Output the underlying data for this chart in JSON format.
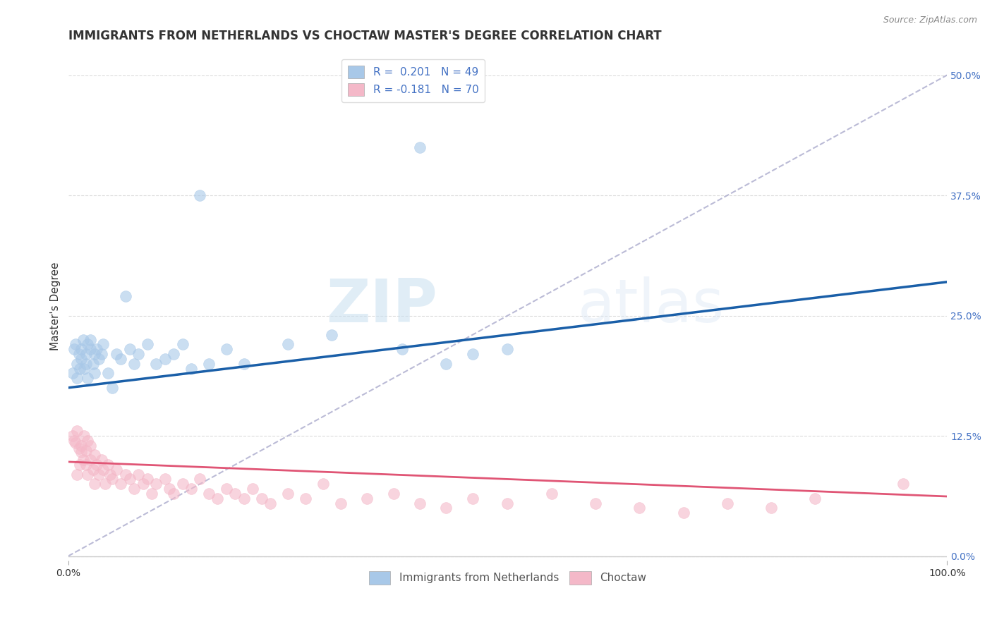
{
  "title": "IMMIGRANTS FROM NETHERLANDS VS CHOCTAW MASTER'S DEGREE CORRELATION CHART",
  "source": "Source: ZipAtlas.com",
  "ylabel": "Master's Degree",
  "xlabel": "",
  "legend_labels": [
    "Immigrants from Netherlands",
    "Choctaw"
  ],
  "blue_R": 0.201,
  "blue_N": 49,
  "pink_R": -0.181,
  "pink_N": 70,
  "blue_color": "#a8c8e8",
  "pink_color": "#f4b8c8",
  "blue_line_color": "#1a5fa8",
  "pink_line_color": "#e05575",
  "ref_line_color": "#aaaacc",
  "background_color": "#ffffff",
  "grid_color": "#cccccc",
  "xlim": [
    0.0,
    1.0
  ],
  "ylim": [
    -0.005,
    0.525
  ],
  "right_yticks": [
    0.0,
    0.125,
    0.25,
    0.375,
    0.5
  ],
  "right_yticklabels": [
    "0.0%",
    "12.5%",
    "25.0%",
    "37.5%",
    "50.0%"
  ],
  "xticklabels": [
    "0.0%",
    "100.0%"
  ],
  "xticks": [
    0.0,
    1.0
  ],
  "blue_trend_x0": 0.0,
  "blue_trend_y0": 0.175,
  "blue_trend_x1": 1.0,
  "blue_trend_y1": 0.285,
  "pink_trend_x0": 0.0,
  "pink_trend_y0": 0.098,
  "pink_trend_x1": 1.0,
  "pink_trend_y1": 0.062,
  "ref_line_x0": 0.0,
  "ref_line_y0": 0.0,
  "ref_line_x1": 1.0,
  "ref_line_y1": 0.5,
  "blue_scatter_x": [
    0.005,
    0.007,
    0.008,
    0.01,
    0.01,
    0.012,
    0.013,
    0.015,
    0.015,
    0.017,
    0.018,
    0.02,
    0.02,
    0.022,
    0.022,
    0.025,
    0.025,
    0.028,
    0.03,
    0.03,
    0.032,
    0.035,
    0.038,
    0.04,
    0.045,
    0.05,
    0.055,
    0.06,
    0.065,
    0.07,
    0.08,
    0.09,
    0.1,
    0.11,
    0.12,
    0.13,
    0.14,
    0.16,
    0.18,
    0.2,
    0.25,
    0.3,
    0.38,
    0.4,
    0.43,
    0.46,
    0.5,
    0.15,
    0.075
  ],
  "blue_scatter_y": [
    0.19,
    0.215,
    0.22,
    0.185,
    0.2,
    0.21,
    0.195,
    0.205,
    0.215,
    0.225,
    0.195,
    0.2,
    0.21,
    0.22,
    0.185,
    0.215,
    0.225,
    0.2,
    0.19,
    0.21,
    0.215,
    0.205,
    0.21,
    0.22,
    0.19,
    0.175,
    0.21,
    0.205,
    0.27,
    0.215,
    0.21,
    0.22,
    0.2,
    0.205,
    0.21,
    0.22,
    0.195,
    0.2,
    0.215,
    0.2,
    0.22,
    0.23,
    0.215,
    0.425,
    0.2,
    0.21,
    0.215,
    0.375,
    0.2
  ],
  "pink_scatter_x": [
    0.005,
    0.007,
    0.008,
    0.01,
    0.01,
    0.012,
    0.013,
    0.015,
    0.015,
    0.017,
    0.018,
    0.02,
    0.02,
    0.022,
    0.022,
    0.025,
    0.025,
    0.028,
    0.03,
    0.03,
    0.032,
    0.035,
    0.038,
    0.04,
    0.042,
    0.045,
    0.048,
    0.05,
    0.055,
    0.06,
    0.065,
    0.07,
    0.075,
    0.08,
    0.085,
    0.09,
    0.095,
    0.1,
    0.11,
    0.115,
    0.12,
    0.13,
    0.14,
    0.15,
    0.16,
    0.17,
    0.18,
    0.19,
    0.2,
    0.21,
    0.22,
    0.23,
    0.25,
    0.27,
    0.29,
    0.31,
    0.34,
    0.37,
    0.4,
    0.43,
    0.46,
    0.5,
    0.55,
    0.6,
    0.65,
    0.7,
    0.75,
    0.8,
    0.85,
    0.95
  ],
  "pink_scatter_y": [
    0.125,
    0.12,
    0.118,
    0.13,
    0.085,
    0.112,
    0.095,
    0.115,
    0.108,
    0.1,
    0.125,
    0.11,
    0.095,
    0.12,
    0.085,
    0.115,
    0.1,
    0.09,
    0.105,
    0.075,
    0.095,
    0.085,
    0.1,
    0.09,
    0.075,
    0.095,
    0.085,
    0.08,
    0.09,
    0.075,
    0.085,
    0.08,
    0.07,
    0.085,
    0.075,
    0.08,
    0.065,
    0.075,
    0.08,
    0.07,
    0.065,
    0.075,
    0.07,
    0.08,
    0.065,
    0.06,
    0.07,
    0.065,
    0.06,
    0.07,
    0.06,
    0.055,
    0.065,
    0.06,
    0.075,
    0.055,
    0.06,
    0.065,
    0.055,
    0.05,
    0.06,
    0.055,
    0.065,
    0.055,
    0.05,
    0.045,
    0.055,
    0.05,
    0.06,
    0.075
  ],
  "watermark_zip": "ZIP",
  "watermark_atlas": "atlas",
  "title_fontsize": 12,
  "axis_fontsize": 11,
  "tick_fontsize": 10,
  "legend_fontsize": 11
}
